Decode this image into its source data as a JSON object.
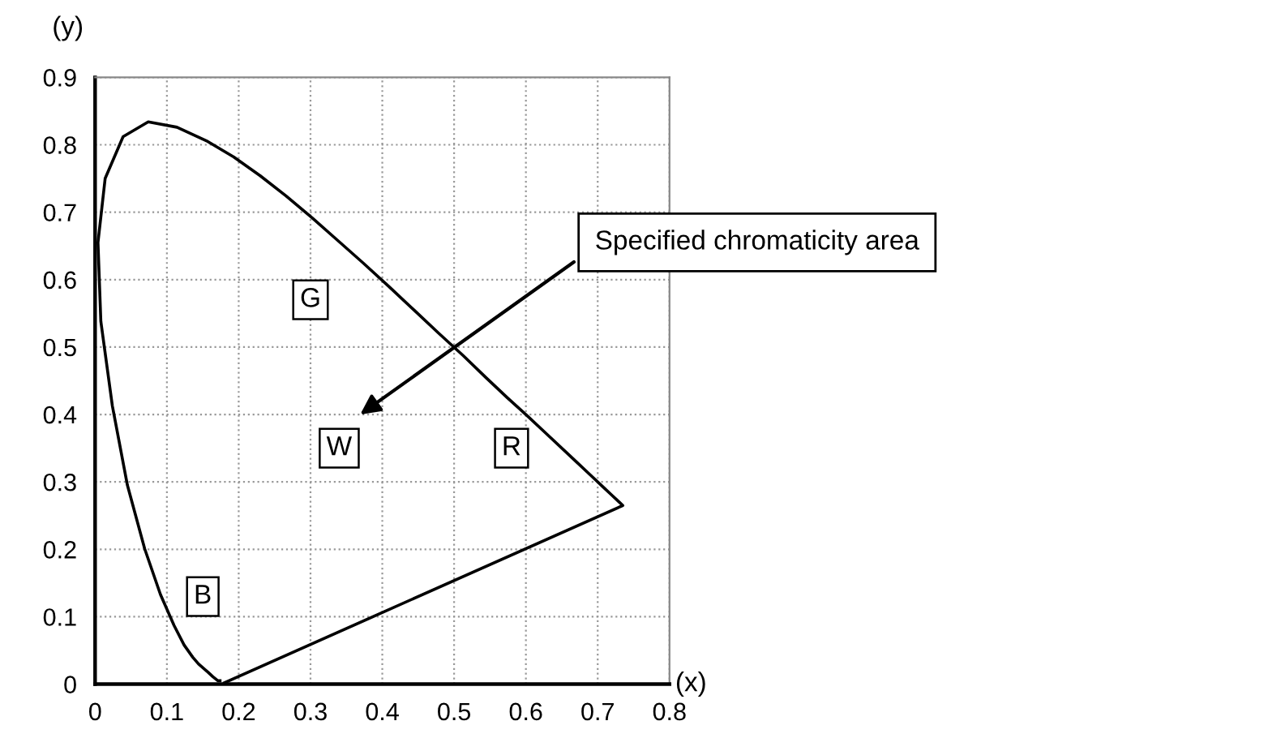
{
  "chart_data": {
    "type": "line",
    "xlabel": "(x)",
    "ylabel": "(y)",
    "xlim": [
      0,
      0.8
    ],
    "xticks": [
      0,
      0.1,
      0.2,
      0.3,
      0.4,
      0.5,
      0.6,
      0.7,
      0.8
    ],
    "ylim": [
      0,
      0.9
    ],
    "yticks": [
      0,
      0.1,
      0.2,
      0.3,
      0.4,
      0.5,
      0.6,
      0.7,
      0.8,
      0.9
    ],
    "grid": true,
    "marker": "none",
    "line_style": "solid",
    "series": [
      {
        "color": "#000000",
        "x": [
          0.174,
          0.171,
          0.164,
          0.157,
          0.144,
          0.136,
          0.124,
          0.11,
          0.091,
          0.069,
          0.045,
          0.024,
          0.008,
          0.004,
          0.014,
          0.039,
          0.074,
          0.114,
          0.155,
          0.193,
          0.23,
          0.266,
          0.302,
          0.337,
          0.373,
          0.409,
          0.444,
          0.479,
          0.513,
          0.545,
          0.575,
          0.603,
          0.627,
          0.666,
          0.692,
          0.708,
          0.719,
          0.73,
          0.735,
          0.18
        ],
        "values": [
          0.005,
          0.005,
          0.011,
          0.018,
          0.03,
          0.04,
          0.058,
          0.087,
          0.133,
          0.201,
          0.295,
          0.413,
          0.538,
          0.655,
          0.75,
          0.812,
          0.834,
          0.826,
          0.806,
          0.782,
          0.754,
          0.724,
          0.692,
          0.659,
          0.625,
          0.59,
          0.555,
          0.52,
          0.487,
          0.454,
          0.424,
          0.397,
          0.373,
          0.334,
          0.308,
          0.292,
          0.281,
          0.27,
          0.265,
          0.002
        ]
      }
    ],
    "annotations": [
      "G",
      "W",
      "R",
      "B",
      "Specified chromaticity area"
    ]
  }
}
